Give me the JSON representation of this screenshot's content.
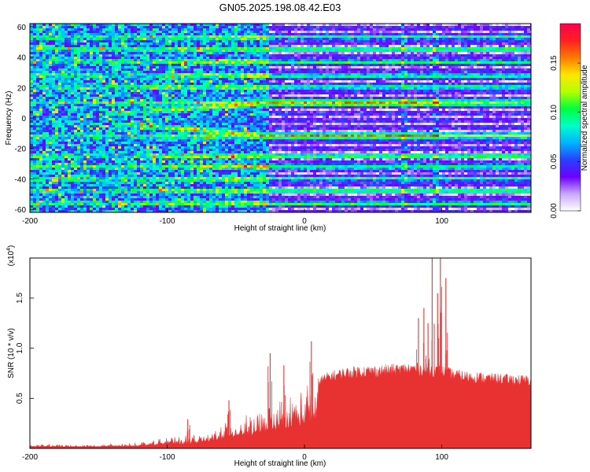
{
  "title": "GN05.2025.198.08.42.E03",
  "colors": {
    "bar": "#e83232",
    "colormap": [
      "#ffffff",
      "#c9a6ff",
      "#6a00ff",
      "#2a40ff",
      "#00b4ff",
      "#00ffc8",
      "#00ff3c",
      "#b4ff00",
      "#ffe600",
      "#ff7a00",
      "#ff2020",
      "#ff0050"
    ]
  },
  "chart_data": [
    {
      "type": "heatmap",
      "title": "GN05.2025.198.08.42.E03",
      "xlabel": "Height of straight line (km)",
      "ylabel": "Frequency (Hz)",
      "xlim": [
        -200,
        165
      ],
      "ylim": [
        -62,
        62
      ],
      "x_ticks": [
        -200,
        -100,
        0,
        100
      ],
      "y_ticks": [
        -60,
        -40,
        -20,
        0,
        20,
        40,
        60
      ],
      "colorbar": {
        "label": "Normalized spectral amplitude",
        "range": [
          0.0,
          0.19
        ],
        "ticks": [
          "0.00",
          "0.05",
          "0.10",
          "0.15"
        ],
        "tick_values": [
          0.0,
          0.05,
          0.1,
          0.15
        ]
      },
      "features": {
        "persistent_lines_hz": [
          -56,
          -48,
          -40,
          -32,
          -25,
          -12,
          10,
          20,
          28,
          37,
          45,
          53
        ],
        "strong_lines_hz": [
          -12,
          10
        ],
        "x_onset_km": -25,
        "vertical_artifacts_km": [
          72,
          96
        ]
      }
    },
    {
      "type": "bar",
      "xlabel": "Height of straight line (km)",
      "ylabel": "SNR (10 * v/v)",
      "y_multiplier_label": "(x10",
      "y_multiplier_exp": "4",
      "y_multiplier_close": ")",
      "xlim": [
        -200,
        165
      ],
      "ylim": [
        0,
        19000
      ],
      "x_ticks": [
        -200,
        -100,
        0,
        100
      ],
      "y_ticks": [
        0.5,
        1.0,
        1.5
      ],
      "y_tick_labels": [
        "0.5",
        "1.0",
        "1.5"
      ],
      "envelope": {
        "x": [
          -200,
          -150,
          -130,
          -110,
          -100,
          -90,
          -80,
          -70,
          -60,
          -50,
          -40,
          -30,
          -20,
          -10,
          0,
          10,
          20,
          30,
          40,
          50,
          60,
          70,
          80,
          90,
          100,
          110,
          120,
          140,
          165
        ],
        "y": [
          450,
          450,
          550,
          900,
          1300,
          1200,
          1500,
          1800,
          2600,
          3200,
          3600,
          4300,
          5500,
          6000,
          6700,
          7200,
          7800,
          8100,
          8300,
          8300,
          8400,
          8500,
          8600,
          8400,
          8300,
          7900,
          7700,
          7500,
          7300
        ]
      },
      "spikes": [
        {
          "x": -85,
          "y": 2900
        },
        {
          "x": -55,
          "y": 4800
        },
        {
          "x": -25,
          "y": 9500
        },
        {
          "x": -15,
          "y": 8300
        },
        {
          "x": 5,
          "y": 10700
        },
        {
          "x": 83,
          "y": 13000
        },
        {
          "x": 87,
          "y": 14000
        },
        {
          "x": 90,
          "y": 12500
        },
        {
          "x": 93,
          "y": 19000
        },
        {
          "x": 97,
          "y": 15500
        },
        {
          "x": 99,
          "y": 19000
        },
        {
          "x": 103,
          "y": 17000
        }
      ]
    }
  ]
}
